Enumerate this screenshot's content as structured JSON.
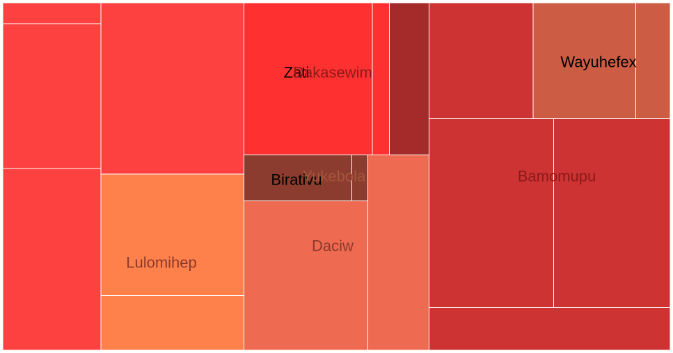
{
  "chart_data": {
    "type": "treemap",
    "title": "",
    "groups": [
      {
        "name": "",
        "color": "#fd4141",
        "label_color": "#000000",
        "values": [
          1.8,
          12.5,
          15.7
        ]
      },
      {
        "name": "",
        "color": "#fd4141",
        "label_color": "#000000",
        "values": [
          21.6
        ]
      },
      {
        "name": "Lulomihep",
        "color": "#fe814c",
        "label_color": "#8b3a2b",
        "values": [
          15.3,
          6.9
        ]
      },
      {
        "name": "Zati",
        "color": "#ff3030",
        "label_color": "#000000",
        "values": [
          17.2
        ]
      },
      {
        "name": "Dakasewim",
        "color": "#ff3030",
        "label_color": "#8b1a1a",
        "values": [
          2.3
        ]
      },
      {
        "name": "",
        "color": "#a52a2a",
        "label_color": "#000000",
        "values": [
          5.3
        ]
      },
      {
        "name": "Birativu",
        "color": "#8b3c2e",
        "label_color": "#000000",
        "values": [
          9.3
        ]
      },
      {
        "name": "Yukebola",
        "color": "#8b3c2e",
        "label_color": "#a8553f",
        "values": [
          1.4
        ]
      },
      {
        "name": "Daciw",
        "color": "#ee6a50",
        "label_color": "#8b3a2b",
        "values": [
          10.6,
          10.5
        ]
      },
      {
        "name": "",
        "color": "#cd3333",
        "label_color": "#000000",
        "values": [
          10.6
        ]
      },
      {
        "name": "Wayuhefex",
        "color": "#cd5c45",
        "label_color": "#000000",
        "values": [
          10.5,
          3.5
        ]
      },
      {
        "name": "Bamomupu",
        "color": "#cd3333",
        "label_color": "#8b1a1a",
        "values": [
          20.7,
          19.4,
          9.1
        ]
      }
    ]
  }
}
